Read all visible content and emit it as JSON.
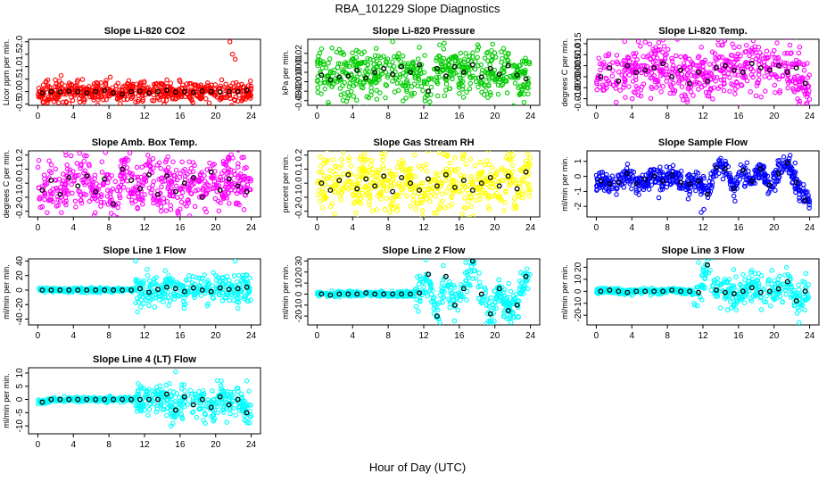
{
  "page_title": "RBA_101229  Slope Diagnostics",
  "x_caption": "Hour of Day (UTC)",
  "colors": {
    "black": "#000000",
    "red": "#ff0000",
    "green": "#00cc00",
    "magenta": "#ff00ff",
    "yellow": "#ffff00",
    "blue": "#0000ff",
    "cyan": "#00ffff"
  },
  "chart_data": [
    {
      "type": "scatter",
      "title": "Slope Li-820 CO2",
      "ylabel": "Licor ppm per min.",
      "xlabel": "",
      "xlim": [
        0,
        24
      ],
      "ylim": [
        -0.55,
        2.1
      ],
      "xticks": [
        0,
        4,
        8,
        12,
        16,
        20,
        24
      ],
      "yticks": [
        -0.5,
        0.0,
        0.5,
        1.0,
        1.5,
        2.0
      ],
      "ytick_labels": [
        "-0.5",
        "0.0",
        "0.5",
        "1.0",
        "1.5",
        "2.0"
      ],
      "color": "red",
      "hourly_hours": [
        0.5,
        1.5,
        2.5,
        3.5,
        4.5,
        5.5,
        6.5,
        7.5,
        8.5,
        9.5,
        10.5,
        11.5,
        12.5,
        13.5,
        14.5,
        15.5,
        16.5,
        17.5,
        18.5,
        19.5,
        20.5,
        21.5,
        22.5,
        23.5
      ],
      "hourly_means": [
        -0.05,
        0.0,
        -0.02,
        0.02,
        0.0,
        -0.05,
        0.0,
        0.05,
        -0.05,
        -0.1,
        0.0,
        0.02,
        -0.05,
        0.0,
        0.05,
        -0.02,
        0.0,
        -0.03,
        0.02,
        0.0,
        -0.02,
        0.0,
        0.0,
        0.05
      ],
      "outliers": [
        {
          "x": 21.6,
          "y": 2.0
        },
        {
          "x": 21.9,
          "y": 1.5
        },
        {
          "x": 22.2,
          "y": 1.3
        }
      ],
      "spread": 0.2,
      "points": 560
    },
    {
      "type": "scatter",
      "title": "Slope Li-820 Pressure",
      "ylabel": "kPa per min.",
      "xlabel": "",
      "xlim": [
        0,
        24
      ],
      "ylim": [
        -0.035,
        0.035
      ],
      "xticks": [
        0,
        4,
        8,
        12,
        16,
        20,
        24
      ],
      "yticks": [
        -0.03,
        -0.02,
        -0.01,
        0.0,
        0.01,
        0.02
      ],
      "ytick_labels": [
        "-0.03",
        "-0.02",
        "-0.01",
        "0.00",
        "0.01",
        "0.02"
      ],
      "color": "green",
      "hourly_hours": [
        0.5,
        1.5,
        2.5,
        3.5,
        4.5,
        5.5,
        6.5,
        7.5,
        8.5,
        9.5,
        10.5,
        11.5,
        12.5,
        13.5,
        14.5,
        15.5,
        16.5,
        17.5,
        18.5,
        19.5,
        20.5,
        21.5,
        22.5,
        23.5
      ],
      "hourly_means": [
        -0.003,
        -0.008,
        -0.005,
        -0.004,
        0.002,
        -0.006,
        0.0,
        0.004,
        -0.002,
        0.006,
        0.0,
        0.008,
        -0.02,
        0.004,
        -0.004,
        0.006,
        0.0,
        0.008,
        -0.005,
        0.004,
        -0.002,
        0.007,
        -0.003,
        -0.007
      ],
      "outliers": [],
      "spread": 0.014,
      "points": 560
    },
    {
      "type": "scatter",
      "title": "Slope Li-820 Temp.",
      "ylabel": "degrees C per min.",
      "xlabel": "",
      "xlim": [
        0,
        24
      ],
      "ylim": [
        -0.013,
        0.017
      ],
      "xticks": [
        0,
        4,
        8,
        12,
        16,
        20,
        24
      ],
      "yticks": [
        -0.01,
        -0.005,
        0.0,
        0.005,
        0.01,
        0.015
      ],
      "ytick_labels": [
        "-0.010",
        "-0.005",
        "0.000",
        "0.005",
        "0.010",
        "0.015"
      ],
      "color": "magenta",
      "hourly_hours": [
        0.5,
        1.5,
        2.5,
        3.5,
        4.5,
        5.5,
        6.5,
        7.5,
        8.5,
        9.5,
        10.5,
        11.5,
        12.5,
        13.5,
        14.5,
        15.5,
        16.5,
        17.5,
        18.5,
        19.5,
        20.5,
        21.5,
        22.5,
        23.5
      ],
      "hourly_means": [
        0.0,
        0.004,
        -0.002,
        0.005,
        0.002,
        0.003,
        0.004,
        0.006,
        0.0,
        0.003,
        -0.003,
        0.002,
        -0.002,
        0.004,
        0.005,
        0.003,
        0.002,
        0.006,
        0.004,
        0.003,
        0.005,
        0.002,
        0.004,
        -0.003
      ],
      "outliers": [],
      "spread": 0.006,
      "points": 560
    },
    {
      "type": "scatter",
      "title": "Slope Amb. Box Temp.",
      "ylabel": "degrees C per min.",
      "xlabel": "",
      "xlim": [
        0,
        24
      ],
      "ylim": [
        -0.24,
        0.23
      ],
      "xticks": [
        0,
        4,
        8,
        12,
        16,
        20,
        24
      ],
      "yticks": [
        -0.2,
        -0.1,
        0.0,
        0.1,
        0.2
      ],
      "ytick_labels": [
        "-0.2",
        "-0.1",
        "0.0",
        "0.1",
        "0.2"
      ],
      "color": "magenta",
      "hourly_hours": [
        0.5,
        1.5,
        2.5,
        3.5,
        4.5,
        5.5,
        6.5,
        7.5,
        8.5,
        9.5,
        10.5,
        11.5,
        12.5,
        13.5,
        14.5,
        15.5,
        16.5,
        17.5,
        18.5,
        19.5,
        20.5,
        21.5,
        22.5,
        23.5
      ],
      "hourly_means": [
        -0.05,
        0.02,
        -0.08,
        0.04,
        -0.02,
        0.05,
        -0.06,
        0.03,
        -0.15,
        0.1,
        0.02,
        -0.04,
        0.06,
        -0.08,
        0.05,
        -0.06,
        0.0,
        0.04,
        -0.1,
        0.08,
        -0.05,
        0.03,
        -0.02,
        -0.06
      ],
      "outliers": [],
      "spread": 0.1,
      "points": 560
    },
    {
      "type": "scatter",
      "title": "Slope Gas Stream RH",
      "ylabel": "percent per min.",
      "xlabel": "",
      "xlim": [
        0,
        24
      ],
      "ylim": [
        -0.24,
        0.23
      ],
      "xticks": [
        0,
        4,
        8,
        12,
        16,
        20,
        24
      ],
      "yticks": [
        -0.2,
        -0.1,
        0.0,
        0.1,
        0.2
      ],
      "ytick_labels": [
        "-0.2",
        "-0.1",
        "0.0",
        "0.1",
        "0.2"
      ],
      "color": "yellow",
      "hourly_hours": [
        0.5,
        1.5,
        2.5,
        3.5,
        4.5,
        5.5,
        6.5,
        7.5,
        8.5,
        9.5,
        10.5,
        11.5,
        12.5,
        13.5,
        14.5,
        15.5,
        16.5,
        17.5,
        18.5,
        19.5,
        20.5,
        21.5,
        22.5,
        23.5
      ],
      "hourly_means": [
        0.0,
        -0.05,
        0.02,
        0.06,
        -0.04,
        0.03,
        -0.02,
        0.05,
        -0.06,
        0.04,
        0.0,
        -0.05,
        0.03,
        -0.02,
        0.06,
        -0.03,
        0.02,
        -0.05,
        0.0,
        0.04,
        -0.02,
        0.05,
        -0.04,
        0.08
      ],
      "outliers": [],
      "spread": 0.1,
      "points": 560
    },
    {
      "type": "scatter",
      "title": "Slope Sample Flow",
      "ylabel": "ml/min per min.",
      "xlabel": "",
      "xlim": [
        0,
        24
      ],
      "ylim": [
        -2.7,
        1.7
      ],
      "xticks": [
        0,
        4,
        8,
        12,
        16,
        20,
        24
      ],
      "yticks": [
        -2,
        -1,
        0,
        1
      ],
      "ytick_labels": [
        "-2",
        "-1",
        "0",
        "1"
      ],
      "color": "blue",
      "hourly_hours": [
        0.5,
        1.5,
        2.5,
        3.5,
        4.5,
        5.5,
        6.5,
        7.5,
        8.5,
        9.5,
        10.5,
        11.5,
        12.5,
        13.5,
        14.5,
        15.5,
        16.5,
        17.5,
        18.5,
        19.5,
        20.5,
        21.5,
        22.5,
        23.5
      ],
      "hourly_means": [
        -0.3,
        -0.5,
        -0.4,
        0.2,
        -0.5,
        -0.2,
        0.0,
        -0.3,
        0.1,
        -0.4,
        -0.5,
        -0.3,
        -1.2,
        0.6,
        0.5,
        -0.8,
        0.4,
        -0.3,
        0.5,
        -0.6,
        0.2,
        0.9,
        -0.4,
        -1.6
      ],
      "outliers": [
        {
          "x": 11.8,
          "y": -2.4
        },
        {
          "x": 12.1,
          "y": -2.2
        },
        {
          "x": 21.8,
          "y": 1.4
        }
      ],
      "spread": 0.35,
      "points": 560
    },
    {
      "type": "scatter",
      "title": "Slope Line 1 Flow",
      "ylabel": "ml/min per min.",
      "xlabel": "",
      "xlim": [
        0,
        24
      ],
      "ylim": [
        -48,
        43
      ],
      "xticks": [
        0,
        4,
        8,
        12,
        16,
        20,
        24
      ],
      "yticks": [
        -40,
        -20,
        0,
        20,
        40
      ],
      "ytick_labels": [
        "-40",
        "-20",
        "0",
        "20",
        "40"
      ],
      "color": "cyan",
      "hourly_hours": [
        0.5,
        1.5,
        2.5,
        3.5,
        4.5,
        5.5,
        6.5,
        7.5,
        8.5,
        9.5,
        10.5,
        11.5,
        12.5,
        13.5,
        14.5,
        15.5,
        16.5,
        17.5,
        18.5,
        19.5,
        20.5,
        21.5,
        22.5,
        23.5
      ],
      "hourly_means": [
        0,
        0,
        0,
        0,
        0,
        0,
        0,
        0,
        0,
        0,
        0,
        2,
        -3,
        1,
        4,
        2,
        -2,
        3,
        0,
        -2,
        3,
        1,
        2,
        4
      ],
      "outliers": [
        {
          "x": 11.0,
          "y": 40
        },
        {
          "x": 22.2,
          "y": 40
        },
        {
          "x": 11.2,
          "y": -30
        }
      ],
      "spread": 10,
      "points": 560
    },
    {
      "type": "scatter",
      "title": "Slope Line 2 Flow",
      "ylabel": "ml/min per min.",
      "xlabel": "",
      "xlim": [
        0,
        24
      ],
      "ylim": [
        -28,
        32
      ],
      "xticks": [
        0,
        4,
        8,
        12,
        16,
        20,
        24
      ],
      "yticks": [
        -20,
        -10,
        0,
        10,
        20,
        30
      ],
      "ytick_labels": [
        "-20",
        "-10",
        "0",
        "10",
        "20",
        "30"
      ],
      "color": "cyan",
      "hourly_hours": [
        0.5,
        1.5,
        2.5,
        3.5,
        4.5,
        5.5,
        6.5,
        7.5,
        8.5,
        9.5,
        10.5,
        11.5,
        12.5,
        13.5,
        14.5,
        15.5,
        16.5,
        17.5,
        18.5,
        19.5,
        20.5,
        21.5,
        22.5,
        23.5
      ],
      "hourly_means": [
        0,
        -1,
        0,
        0,
        0,
        1,
        0,
        0,
        0,
        0,
        0,
        1,
        18,
        -20,
        16,
        -10,
        5,
        30,
        0,
        -18,
        5,
        -15,
        -10,
        16
      ],
      "outliers": [
        {
          "x": 17.5,
          "y": 30
        },
        {
          "x": 19.0,
          "y": -27
        }
      ],
      "spread": 8,
      "points": 560
    },
    {
      "type": "scatter",
      "title": "Slope Line 3 Flow",
      "ylabel": "ml/min per min.",
      "xlabel": "",
      "xlim": [
        0,
        24
      ],
      "ylim": [
        -28,
        27
      ],
      "xticks": [
        0,
        4,
        8,
        12,
        16,
        20,
        24
      ],
      "yticks": [
        -20,
        -10,
        0,
        10,
        20
      ],
      "ytick_labels": [
        "-20",
        "-10",
        "0",
        "10",
        "20"
      ],
      "color": "cyan",
      "hourly_hours": [
        0.5,
        1.5,
        2.5,
        3.5,
        4.5,
        5.5,
        6.5,
        7.5,
        8.5,
        9.5,
        10.5,
        11.5,
        12.5,
        13.5,
        14.5,
        15.5,
        16.5,
        17.5,
        18.5,
        19.5,
        20.5,
        21.5,
        22.5,
        23.5
      ],
      "hourly_means": [
        0,
        1,
        0,
        -1,
        0,
        0,
        0,
        0,
        1,
        0,
        0,
        -1,
        22,
        1,
        -1,
        -2,
        0,
        3,
        -1,
        0,
        2,
        8,
        -8,
        0
      ],
      "outliers": [
        {
          "x": 11.5,
          "y": 24
        },
        {
          "x": 22.8,
          "y": -26
        }
      ],
      "spread": 7,
      "points": 560
    },
    {
      "type": "scatter",
      "title": "Slope Line 4 (LT) Flow",
      "ylabel": "ml/min per min.",
      "xlabel": "",
      "xlim": [
        0,
        24
      ],
      "ylim": [
        -13,
        12
      ],
      "xticks": [
        0,
        4,
        8,
        12,
        16,
        20,
        24
      ],
      "yticks": [
        -10,
        -5,
        0,
        5,
        10
      ],
      "ytick_labels": [
        "-10",
        "-5",
        "0",
        "5",
        "10"
      ],
      "color": "cyan",
      "hourly_hours": [
        0.5,
        1.5,
        2.5,
        3.5,
        4.5,
        5.5,
        6.5,
        7.5,
        8.5,
        9.5,
        10.5,
        11.5,
        12.5,
        13.5,
        14.5,
        15.5,
        16.5,
        17.5,
        18.5,
        19.5,
        20.5,
        21.5,
        22.5,
        23.5
      ],
      "hourly_means": [
        -1,
        0,
        0,
        0,
        0,
        0,
        0,
        0,
        0,
        0,
        0,
        0,
        0,
        0,
        2,
        -4,
        1,
        -2,
        0,
        -3,
        1,
        -2,
        0,
        -5
      ],
      "outliers": [
        {
          "x": 15.5,
          "y": 10.5
        },
        {
          "x": 15.0,
          "y": -10
        },
        {
          "x": 23.5,
          "y": 7
        }
      ],
      "spread": 3,
      "points": 560
    }
  ]
}
